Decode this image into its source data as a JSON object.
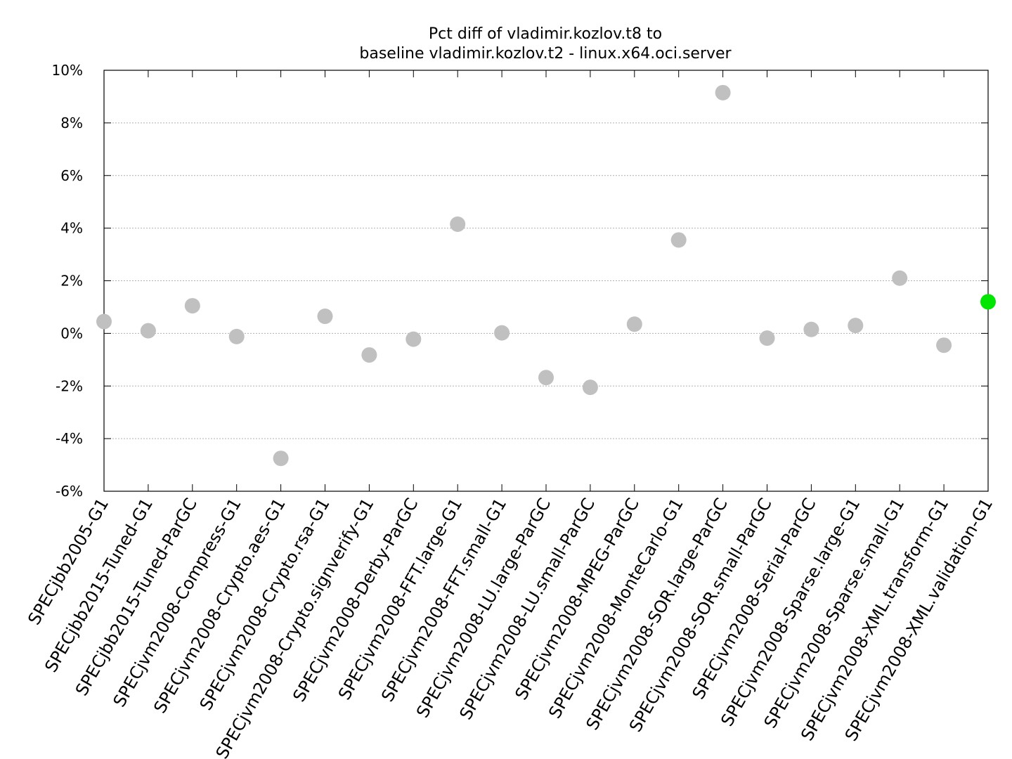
{
  "chart_data": {
    "type": "scatter",
    "title_lines": [
      "Pct diff of vladimir.kozlov.t8 to",
      "baseline vladimir.kozlov.t2 - linux.x64.oci.server"
    ],
    "xlabel": "",
    "ylabel": "",
    "ylim": [
      -6,
      10
    ],
    "yticks": [
      -6,
      -4,
      -2,
      0,
      2,
      4,
      6,
      8,
      10
    ],
    "ytick_labels": [
      "-6%",
      "-4%",
      "-2%",
      "0%",
      "2%",
      "4%",
      "6%",
      "8%",
      "10%"
    ],
    "grid": true,
    "categories": [
      "SPECjbb2005-G1",
      "SPECjbb2015-Tuned-G1",
      "SPECjbb2015-Tuned-ParGC",
      "SPECjvm2008-Compress-G1",
      "SPECjvm2008-Crypto.aes-G1",
      "SPECjvm2008-Crypto.rsa-G1",
      "SPECjvm2008-Crypto.signverify-G1",
      "SPECjvm2008-Derby-ParGC",
      "SPECjvm2008-FFT.large-G1",
      "SPECjvm2008-FFT.small-G1",
      "SPECjvm2008-LU.large-ParGC",
      "SPECjvm2008-LU.small-ParGC",
      "SPECjvm2008-MPEG-ParGC",
      "SPECjvm2008-MonteCarlo-G1",
      "SPECjvm2008-SOR.large-ParGC",
      "SPECjvm2008-SOR.small-ParGC",
      "SPECjvm2008-Serial-ParGC",
      "SPECjvm2008-Sparse.large-G1",
      "SPECjvm2008-Sparse.small-G1",
      "SPECjvm2008-XML.transform-G1",
      "SPECjvm2008-XML.validation-G1"
    ],
    "values": [
      0.45,
      0.1,
      1.05,
      -0.12,
      -4.75,
      0.65,
      -0.82,
      -0.22,
      4.15,
      0.02,
      -1.68,
      -2.05,
      0.35,
      3.55,
      9.15,
      -0.18,
      0.15,
      0.3,
      2.1,
      -0.45,
      1.2
    ],
    "point_colors": [
      "#c0c0c0",
      "#c0c0c0",
      "#c0c0c0",
      "#c0c0c0",
      "#c0c0c0",
      "#c0c0c0",
      "#c0c0c0",
      "#c0c0c0",
      "#c0c0c0",
      "#c0c0c0",
      "#c0c0c0",
      "#c0c0c0",
      "#c0c0c0",
      "#c0c0c0",
      "#c0c0c0",
      "#c0c0c0",
      "#c0c0c0",
      "#c0c0c0",
      "#c0c0c0",
      "#c0c0c0",
      "#00e600"
    ]
  }
}
